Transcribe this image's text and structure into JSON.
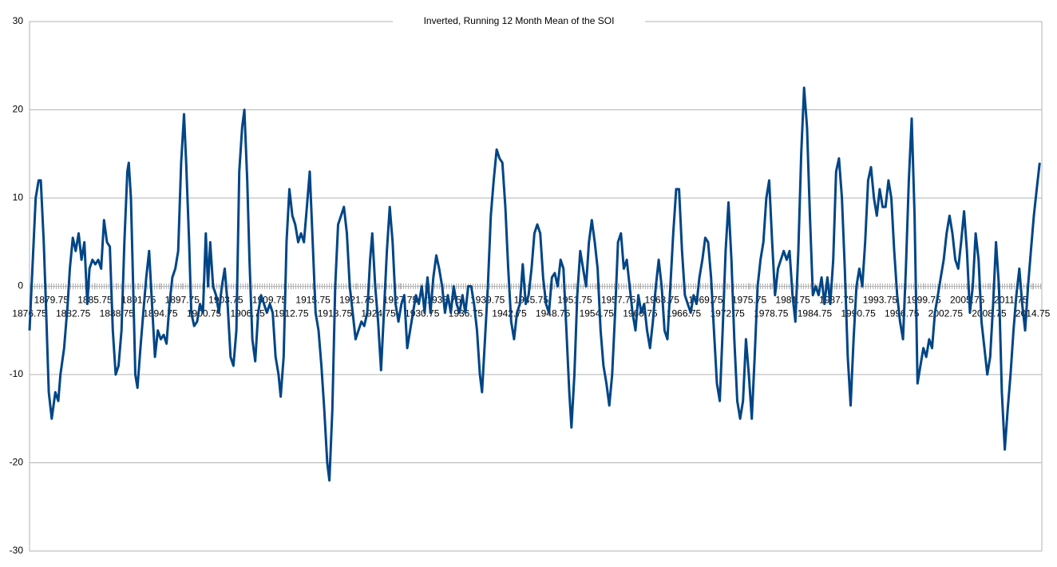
{
  "chart_data": {
    "type": "line",
    "title": "Inverted, Running 12 Month Mean of the SOI",
    "x": [
      1876.75,
      1877.2,
      1877.6,
      1878.0,
      1878.3,
      1878.7,
      1879.0,
      1879.4,
      1879.8,
      1880.3,
      1880.7,
      1881.0,
      1881.5,
      1882.0,
      1882.3,
      1882.7,
      1883.1,
      1883.5,
      1883.9,
      1884.3,
      1884.7,
      1885.0,
      1885.4,
      1885.8,
      1886.2,
      1886.6,
      1887.0,
      1887.4,
      1887.8,
      1888.2,
      1888.6,
      1889.0,
      1889.4,
      1889.8,
      1890.2,
      1890.4,
      1890.7,
      1891.0,
      1891.3,
      1891.6,
      1892.0,
      1892.4,
      1892.8,
      1893.2,
      1893.6,
      1894.0,
      1894.4,
      1894.8,
      1895.2,
      1895.6,
      1896.0,
      1896.4,
      1896.8,
      1897.2,
      1897.6,
      1898.0,
      1898.3,
      1898.7,
      1899.0,
      1899.4,
      1899.8,
      1900.2,
      1900.6,
      1901.0,
      1901.3,
      1901.6,
      1902.0,
      1902.4,
      1902.8,
      1903.2,
      1903.6,
      1904.0,
      1904.4,
      1904.8,
      1905.2,
      1905.6,
      1906.0,
      1906.3,
      1906.7,
      1907.0,
      1907.4,
      1907.8,
      1908.2,
      1908.6,
      1909.0,
      1909.4,
      1909.8,
      1910.2,
      1910.6,
      1911.0,
      1911.3,
      1911.7,
      1912.1,
      1912.5,
      1912.9,
      1913.3,
      1913.7,
      1914.1,
      1914.5,
      1914.9,
      1915.3,
      1915.7,
      1916.1,
      1916.5,
      1916.9,
      1917.3,
      1917.7,
      1918.0,
      1918.4,
      1918.8,
      1919.2,
      1919.6,
      1920.0,
      1920.4,
      1920.8,
      1921.2,
      1921.6,
      1922.0,
      1922.4,
      1922.8,
      1923.2,
      1923.6,
      1923.9,
      1924.3,
      1924.7,
      1925.1,
      1925.5,
      1925.9,
      1926.3,
      1926.7,
      1927.1,
      1927.5,
      1927.9,
      1928.3,
      1928.7,
      1929.1,
      1929.5,
      1929.9,
      1930.3,
      1930.7,
      1931.1,
      1931.5,
      1931.9,
      1932.3,
      1932.7,
      1933.1,
      1933.5,
      1933.9,
      1934.3,
      1934.7,
      1935.1,
      1935.5,
      1935.9,
      1936.3,
      1936.7,
      1937.1,
      1937.5,
      1937.9,
      1938.3,
      1938.7,
      1939.0,
      1939.4,
      1939.8,
      1940.2,
      1940.6,
      1941.0,
      1941.4,
      1941.8,
      1942.2,
      1942.6,
      1943.0,
      1943.4,
      1943.8,
      1944.2,
      1944.6,
      1945.0,
      1945.4,
      1945.8,
      1946.2,
      1946.6,
      1947.0,
      1947.4,
      1947.8,
      1948.2,
      1948.6,
      1949.0,
      1949.4,
      1949.8,
      1950.2,
      1950.6,
      1951.0,
      1951.3,
      1951.7,
      1952.1,
      1952.5,
      1952.9,
      1953.3,
      1953.7,
      1954.1,
      1954.5,
      1954.9,
      1955.3,
      1955.7,
      1956.1,
      1956.5,
      1956.9,
      1957.3,
      1957.7,
      1958.1,
      1958.5,
      1958.9,
      1959.3,
      1959.7,
      1960.1,
      1960.5,
      1960.9,
      1961.3,
      1961.7,
      1962.1,
      1962.5,
      1962.9,
      1963.3,
      1963.7,
      1964.1,
      1964.5,
      1964.9,
      1965.3,
      1965.7,
      1966.1,
      1966.5,
      1966.9,
      1967.3,
      1967.7,
      1968.1,
      1968.5,
      1968.9,
      1969.3,
      1969.7,
      1970.1,
      1970.5,
      1970.9,
      1971.3,
      1971.7,
      1972.1,
      1972.5,
      1972.9,
      1973.3,
      1973.7,
      1974.1,
      1974.5,
      1974.9,
      1975.3,
      1975.7,
      1976.1,
      1976.5,
      1976.9,
      1977.3,
      1977.7,
      1978.1,
      1978.5,
      1978.9,
      1979.3,
      1979.7,
      1980.1,
      1980.5,
      1980.9,
      1981.3,
      1981.7,
      1982.1,
      1982.5,
      1982.9,
      1983.3,
      1983.7,
      1984.1,
      1984.5,
      1984.9,
      1985.3,
      1985.7,
      1986.1,
      1986.5,
      1986.9,
      1987.3,
      1987.7,
      1988.1,
      1988.5,
      1988.9,
      1989.3,
      1989.7,
      1990.1,
      1990.5,
      1990.9,
      1991.3,
      1991.7,
      1992.1,
      1992.5,
      1992.9,
      1993.3,
      1993.7,
      1994.1,
      1994.5,
      1994.9,
      1995.3,
      1995.7,
      1996.1,
      1996.5,
      1996.9,
      1997.3,
      1997.7,
      1998.1,
      1998.5,
      1998.9,
      1999.3,
      1999.7,
      2000.1,
      2000.5,
      2000.9,
      2001.3,
      2001.7,
      2002.1,
      2002.5,
      2002.9,
      2003.3,
      2003.7,
      2004.1,
      2004.5,
      2004.9,
      2005.3,
      2005.7,
      2006.1,
      2006.5,
      2006.9,
      2007.3,
      2007.7,
      2008.1,
      2008.5,
      2008.9,
      2009.3,
      2009.7,
      2010.1,
      2010.5,
      2010.9,
      2011.3,
      2011.7,
      2012.1,
      2012.5,
      2012.9,
      2013.3,
      2013.7,
      2014.1,
      2014.5,
      2014.9,
      2015.3,
      2015.7
    ],
    "series": [
      {
        "color": "#004586",
        "values": [
          -5,
          3,
          10,
          12,
          12,
          5,
          -2,
          -12,
          -15,
          -12,
          -13,
          -10,
          -7,
          -2,
          2,
          5.5,
          4,
          6,
          3,
          5,
          -2,
          2,
          3,
          2.5,
          3,
          2,
          7.5,
          5,
          4.5,
          -5,
          -10,
          -9,
          -5,
          5,
          13,
          14,
          10,
          0,
          -10,
          -11.5,
          -7,
          -3,
          1,
          4,
          -2,
          -8,
          -5,
          -6,
          -5.5,
          -6.5,
          -2,
          1,
          2,
          4,
          14,
          19.5,
          14,
          5,
          -3,
          -4.5,
          -4,
          -2,
          -3,
          6,
          0,
          5,
          0,
          -1,
          -3,
          0,
          2,
          -2,
          -8,
          -9,
          -5,
          13,
          18,
          20,
          12,
          3,
          -6,
          -8.5,
          -3,
          -1,
          -2,
          -3,
          -2,
          -3,
          -8,
          -10,
          -12.5,
          -8,
          5,
          11,
          8,
          7,
          5,
          6,
          5,
          9,
          13,
          5,
          -3,
          -5,
          -9,
          -14,
          -20,
          -22,
          -14,
          0,
          7,
          8,
          9,
          6,
          0,
          -3,
          -6,
          -5,
          -4,
          -4.5,
          -3,
          3,
          6,
          0,
          -4,
          -9.5,
          -3,
          4,
          9,
          5,
          -2,
          -4,
          -2,
          -1,
          -7,
          -5,
          -3,
          -1,
          -2,
          0,
          -3,
          1,
          -3,
          1,
          3.5,
          2,
          0,
          -3,
          -1,
          -3,
          0,
          -2,
          -3,
          -1,
          -3,
          0,
          0,
          -2,
          -5,
          -10,
          -12,
          -6,
          0,
          8,
          12,
          15.5,
          14.5,
          14,
          9,
          2,
          -4,
          -6,
          -3,
          -2,
          2.5,
          -2,
          -1,
          2,
          6,
          7,
          6,
          1,
          -2,
          -3,
          1,
          1.5,
          0,
          3,
          2,
          -5,
          -12,
          -16,
          -10,
          -1,
          4,
          2,
          0,
          5,
          7.5,
          5,
          2,
          -5,
          -9,
          -11,
          -13.5,
          -10,
          -3,
          5,
          6,
          2,
          3,
          0,
          -3,
          -5,
          -1,
          -3,
          -2,
          -5,
          -7,
          -4,
          0,
          3,
          0,
          -5,
          -6,
          0,
          6,
          11,
          11,
          4,
          -1,
          -2,
          -3,
          -1,
          -2,
          1,
          3,
          5.5,
          5,
          1,
          -5,
          -11,
          -13,
          -5,
          4,
          9.5,
          3,
          -6,
          -13,
          -15,
          -13,
          -6,
          -10,
          -15,
          -8,
          0,
          3,
          5,
          10,
          12,
          5,
          -1,
          2,
          3,
          4,
          3,
          4,
          -1,
          -4,
          4,
          15,
          22.5,
          18,
          8,
          -1,
          0,
          -1,
          1,
          -2,
          1,
          -2,
          3,
          13,
          14.5,
          10,
          2,
          -8,
          -13.5,
          -6,
          0,
          2,
          0,
          5,
          12,
          13.5,
          10,
          8,
          11,
          9,
          9,
          12,
          10,
          4,
          -1,
          -4,
          -6,
          2,
          12,
          19,
          8,
          -11,
          -9,
          -7,
          -8,
          -6,
          -7,
          -3,
          -1,
          1,
          3,
          6,
          8,
          6,
          3,
          2,
          5,
          8.5,
          4,
          -3,
          0,
          6,
          3,
          -4,
          -7,
          -10,
          -8,
          -2,
          5,
          0,
          -12,
          -18.5,
          -14,
          -10,
          -5,
          -1,
          2,
          -2,
          -5,
          0,
          4,
          8,
          11,
          14
        ]
      }
    ],
    "xlim": [
      1876.75,
      2016
    ],
    "xticks": [
      1876.75,
      1879.75,
      1882.75,
      1885.75,
      1888.75,
      1891.75,
      1894.75,
      1897.75,
      1900.75,
      1903.75,
      1906.75,
      1909.75,
      1912.75,
      1915.75,
      1918.75,
      1921.75,
      1924.75,
      1927.75,
      1930.75,
      1933.75,
      1936.75,
      1939.75,
      1942.75,
      1945.75,
      1948.75,
      1951.75,
      1954.75,
      1957.75,
      1960.75,
      1963.75,
      1966.75,
      1969.75,
      1972.75,
      1975.75,
      1978.75,
      1981.75,
      1984.75,
      1987.75,
      1990.75,
      1993.75,
      1996.75,
      1999.75,
      2002.75,
      2005.75,
      2008.75,
      2011.75,
      2014.75
    ],
    "ylim": [
      -30,
      30
    ],
    "yticks": [
      -30,
      -20,
      -10,
      0,
      10,
      20,
      30
    ],
    "grid": true
  }
}
